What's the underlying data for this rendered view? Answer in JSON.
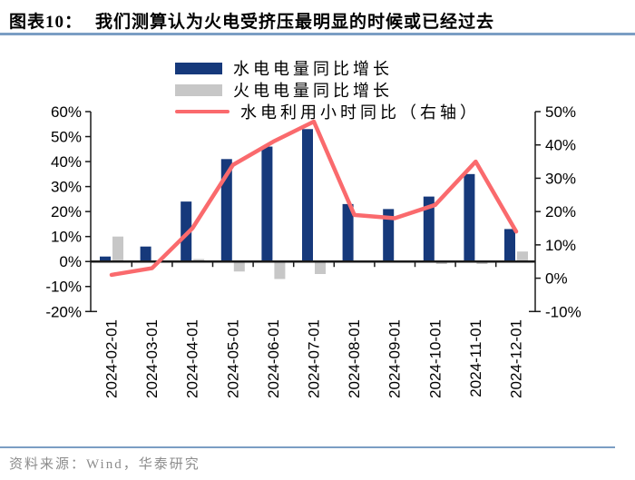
{
  "figure": {
    "label": "图表10：",
    "title": "我们测算认为火电受挤压最明显的时候或已经过去"
  },
  "footer": {
    "source": "资料来源：Wind，华泰研究"
  },
  "colors": {
    "hydro_bar": "#16397B",
    "thermal_bar": "#C7C7C7",
    "line": "#FA6A6D",
    "rule_blue": "#7B9EC4",
    "footer_text": "#8C8C8C",
    "axis": "#1A1A1A"
  },
  "chart_data": {
    "type": "bar",
    "title": "我们测算认为火电受挤压最明显的时候或已经过去",
    "categories": [
      "2024-02-01",
      "2024-03-01",
      "2024-04-01",
      "2024-05-01",
      "2024-06-01",
      "2024-07-01",
      "2024-08-01",
      "2024-09-01",
      "2024-10-01",
      "2024-11-01",
      "2024-12-01"
    ],
    "series": [
      {
        "name": "水电电量同比增长",
        "type": "bar",
        "axis": "left",
        "color": "#16397B",
        "values": [
          2,
          6,
          24,
          41,
          46,
          53,
          23,
          21,
          26,
          35,
          13
        ]
      },
      {
        "name": "火电电量同比增长",
        "type": "bar",
        "axis": "left",
        "color": "#C7C7C7",
        "values": [
          10,
          0,
          1,
          -4,
          -7,
          -5,
          0,
          0,
          -1,
          -1,
          4
        ]
      },
      {
        "name": "水电利用小时同比（右轴）",
        "type": "line",
        "axis": "right",
        "color": "#FA6A6D",
        "values": [
          1,
          3,
          15,
          34,
          41,
          47,
          19,
          18,
          22,
          35,
          14
        ]
      }
    ],
    "left_axis": {
      "ylim": [
        -20,
        60
      ],
      "ticks": [
        60,
        50,
        40,
        30,
        20,
        10,
        0,
        -10,
        -20
      ],
      "format": "percent"
    },
    "right_axis": {
      "ylim": [
        -10,
        50
      ],
      "ticks": [
        50,
        40,
        30,
        20,
        10,
        0,
        -10
      ],
      "format": "percent"
    },
    "grid": false,
    "legend_position": "top-center"
  }
}
